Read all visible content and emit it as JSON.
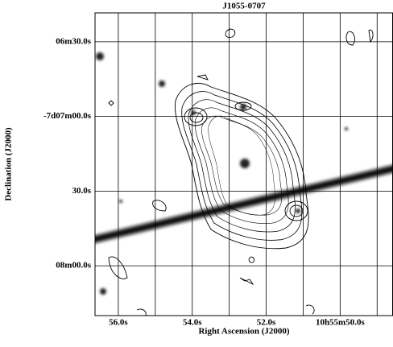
{
  "chart_data": {
    "type": "image-contour",
    "title": "J1055-0707",
    "x_label": "Right Ascension (J2000)",
    "y_label": "Declination (J2000)",
    "xlim": [
      56.63,
      48.57
    ],
    "xticks": [
      {
        "value": 56,
        "label": "56.0s"
      },
      {
        "value": 54,
        "label": "54.0s"
      },
      {
        "value": 52,
        "label": "52.0s"
      },
      {
        "value": 50,
        "label": "10h55m50.0s"
      }
    ],
    "xminor": [
      55,
      53,
      51,
      49
    ],
    "ylim": [
      500,
      378.4
    ],
    "yticks": [
      {
        "value": 390,
        "label": "06m30.0s"
      },
      {
        "value": 420,
        "label": "-7d07m00.0s"
      },
      {
        "value": 450,
        "label": "30.0s"
      },
      {
        "value": 480,
        "label": "08m00.0s"
      }
    ],
    "grid": true
  }
}
